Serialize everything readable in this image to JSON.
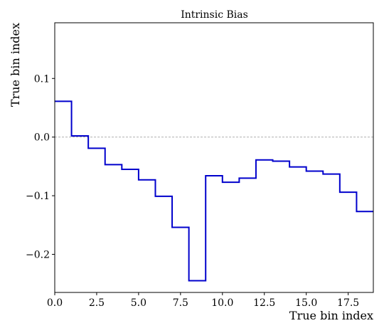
{
  "chart_data": {
    "type": "line",
    "drawstyle": "steps-post",
    "title": "Intrinsic Bias",
    "xlabel": "True bin index",
    "ylabel": "True bin index",
    "xlim": [
      0,
      19
    ],
    "ylim": [
      -0.265,
      0.195
    ],
    "xticks": [
      0,
      2.5,
      5,
      7.5,
      10,
      12.5,
      15,
      17.5
    ],
    "xtick_labels": [
      "0.0",
      "2.5",
      "5.0",
      "7.5",
      "10.0",
      "12.5",
      "15.0",
      "17.5"
    ],
    "yticks": [
      -0.2,
      -0.1,
      0.0,
      0.1
    ],
    "ytick_labels": [
      "−0.2",
      "−0.1",
      "0.0",
      "0.1"
    ],
    "reference_line": {
      "y": 0.0,
      "style": "dashed",
      "color": "#b0b0b0"
    },
    "grid": false,
    "series": [
      {
        "color": "#0000cc",
        "x": [
          0,
          1,
          2,
          3,
          4,
          5,
          6,
          7,
          8,
          9,
          10,
          11,
          12,
          13,
          14,
          15,
          16,
          17,
          18,
          19
        ],
        "y": [
          0.061,
          0.002,
          -0.019,
          -0.047,
          -0.055,
          -0.073,
          -0.101,
          -0.154,
          -0.245,
          -0.066,
          -0.077,
          -0.07,
          -0.039,
          -0.041,
          -0.051,
          -0.058,
          -0.063,
          -0.094,
          -0.127,
          -0.127
        ]
      }
    ]
  }
}
